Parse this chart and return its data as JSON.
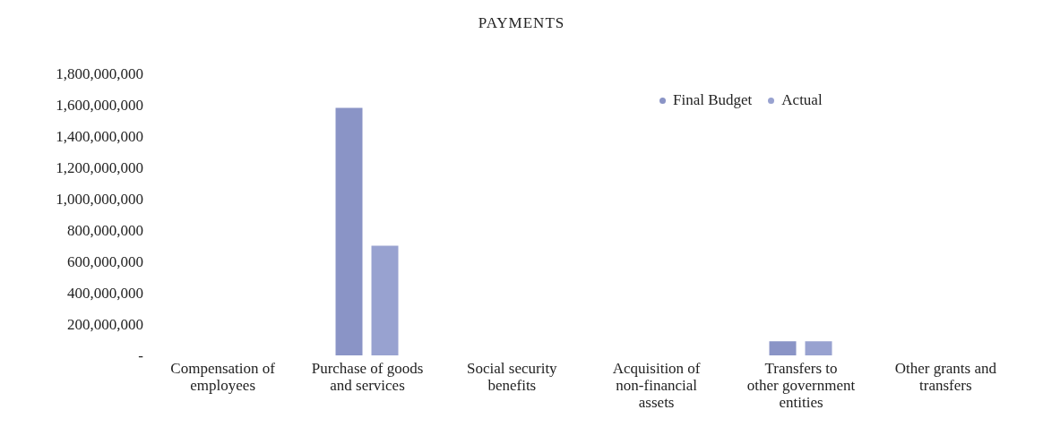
{
  "chart_data": {
    "type": "bar",
    "title": "PAYMENTS",
    "categories": [
      "Compensation of employees",
      "Purchase of goods and services",
      "Social security benefits",
      "Acquisition of non-financial assets",
      "Transfers to other government entities",
      "Other grants and transfers"
    ],
    "series": [
      {
        "name": "Final Budget",
        "color": "#8a94c6",
        "values": [
          0,
          1580000000,
          0,
          0,
          90000000,
          0
        ]
      },
      {
        "name": "Actual",
        "color": "#98a2d0",
        "values": [
          0,
          700000000,
          0,
          0,
          90000000,
          0
        ]
      }
    ],
    "ylim": [
      0,
      1800000000
    ],
    "yticks": [
      {
        "value": 0,
        "label": "-"
      },
      {
        "value": 200000000,
        "label": "200,000,000"
      },
      {
        "value": 400000000,
        "label": "400,000,000"
      },
      {
        "value": 600000000,
        "label": "600,000,000"
      },
      {
        "value": 800000000,
        "label": "800,000,000"
      },
      {
        "value": 1000000000,
        "label": "1,000,000,000"
      },
      {
        "value": 1200000000,
        "label": "1,200,000,000"
      },
      {
        "value": 1400000000,
        "label": "1,400,000,000"
      },
      {
        "value": 1600000000,
        "label": "1,600,000,000"
      },
      {
        "value": 1800000000,
        "label": "1,800,000,000"
      }
    ],
    "grid": false,
    "legend": "top right"
  }
}
